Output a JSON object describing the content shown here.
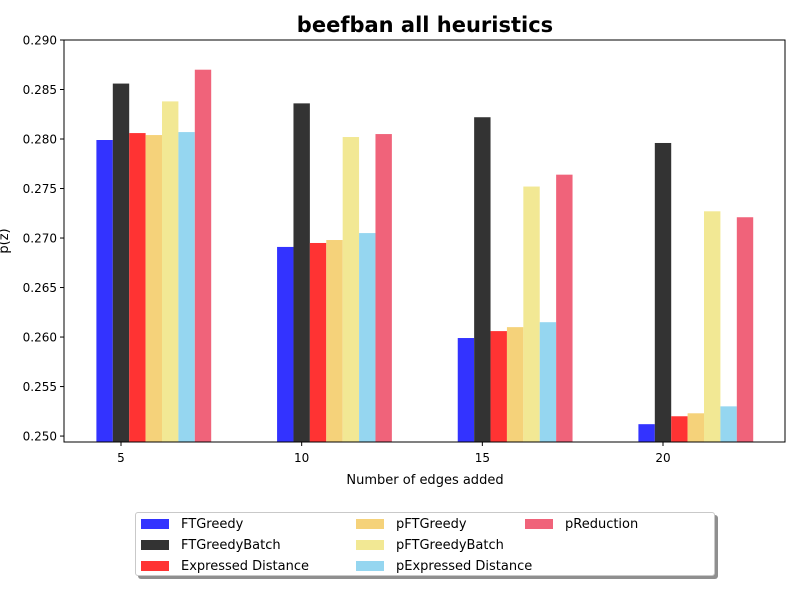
{
  "chart_data": {
    "type": "bar",
    "title": "beefban all heuristics",
    "xlabel": "Number of edges added",
    "ylabel": "p(z)",
    "categories": [
      "5",
      "10",
      "15",
      "20"
    ],
    "ylim": [
      0.2494,
      0.29
    ],
    "yticks": [
      "0.250",
      "0.255",
      "0.260",
      "0.265",
      "0.270",
      "0.275",
      "0.280",
      "0.285",
      "0.290"
    ],
    "grid": false,
    "legend_position": "bottom-center",
    "series": [
      {
        "name": "FTGreedy",
        "color": "#3333ff",
        "values": [
          0.2799,
          0.2691,
          0.2599,
          0.2512
        ]
      },
      {
        "name": "FTGreedyBatch",
        "color": "#333333",
        "values": [
          0.2856,
          0.2836,
          0.2822,
          0.2796
        ]
      },
      {
        "name": "Expressed Distance",
        "color": "#ff3333",
        "values": [
          0.2806,
          0.2695,
          0.2606,
          0.252
        ]
      },
      {
        "name": "pFTGreedy",
        "color": "#f5d27a",
        "values": [
          0.2804,
          0.2698,
          0.261,
          0.2523
        ]
      },
      {
        "name": "pFTGreedyBatch",
        "color": "#f2e894",
        "values": [
          0.2838,
          0.2802,
          0.2752,
          0.2727
        ]
      },
      {
        "name": "pExpressed Distance",
        "color": "#95d6f0",
        "values": [
          0.2807,
          0.2705,
          0.2615,
          0.253
        ]
      },
      {
        "name": "pReduction",
        "color": "#f0637a",
        "values": [
          0.287,
          0.2805,
          0.2764,
          0.2721
        ]
      }
    ]
  }
}
